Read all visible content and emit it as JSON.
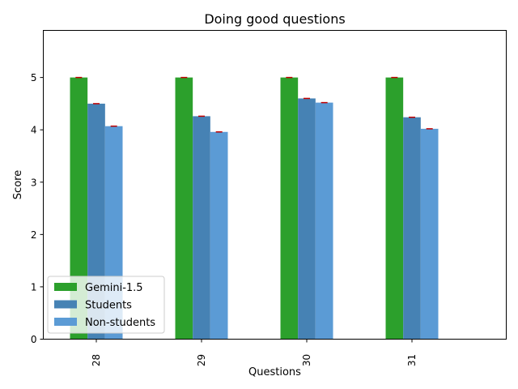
{
  "chart_data": {
    "type": "bar",
    "title": "Doing good questions",
    "xlabel": "Questions",
    "ylabel": "Score",
    "ylim": [
      0,
      5.9
    ],
    "yticks": [
      0,
      1,
      2,
      3,
      4,
      5
    ],
    "grid": false,
    "legend_position": "lower-left",
    "categories": [
      "28",
      "29",
      "30",
      "31"
    ],
    "series": [
      {
        "name": "Gemini-1.5",
        "color": "#2ca02c",
        "values": [
          5.0,
          5.0,
          5.0,
          5.0
        ]
      },
      {
        "name": "Students",
        "color": "#4682b4",
        "values": [
          4.5,
          4.26,
          4.6,
          4.24
        ]
      },
      {
        "name": "Non-students",
        "color": "#5b9bd5",
        "values": [
          4.07,
          3.96,
          4.52,
          4.02
        ]
      }
    ],
    "error_bar_color": "#c00000"
  }
}
